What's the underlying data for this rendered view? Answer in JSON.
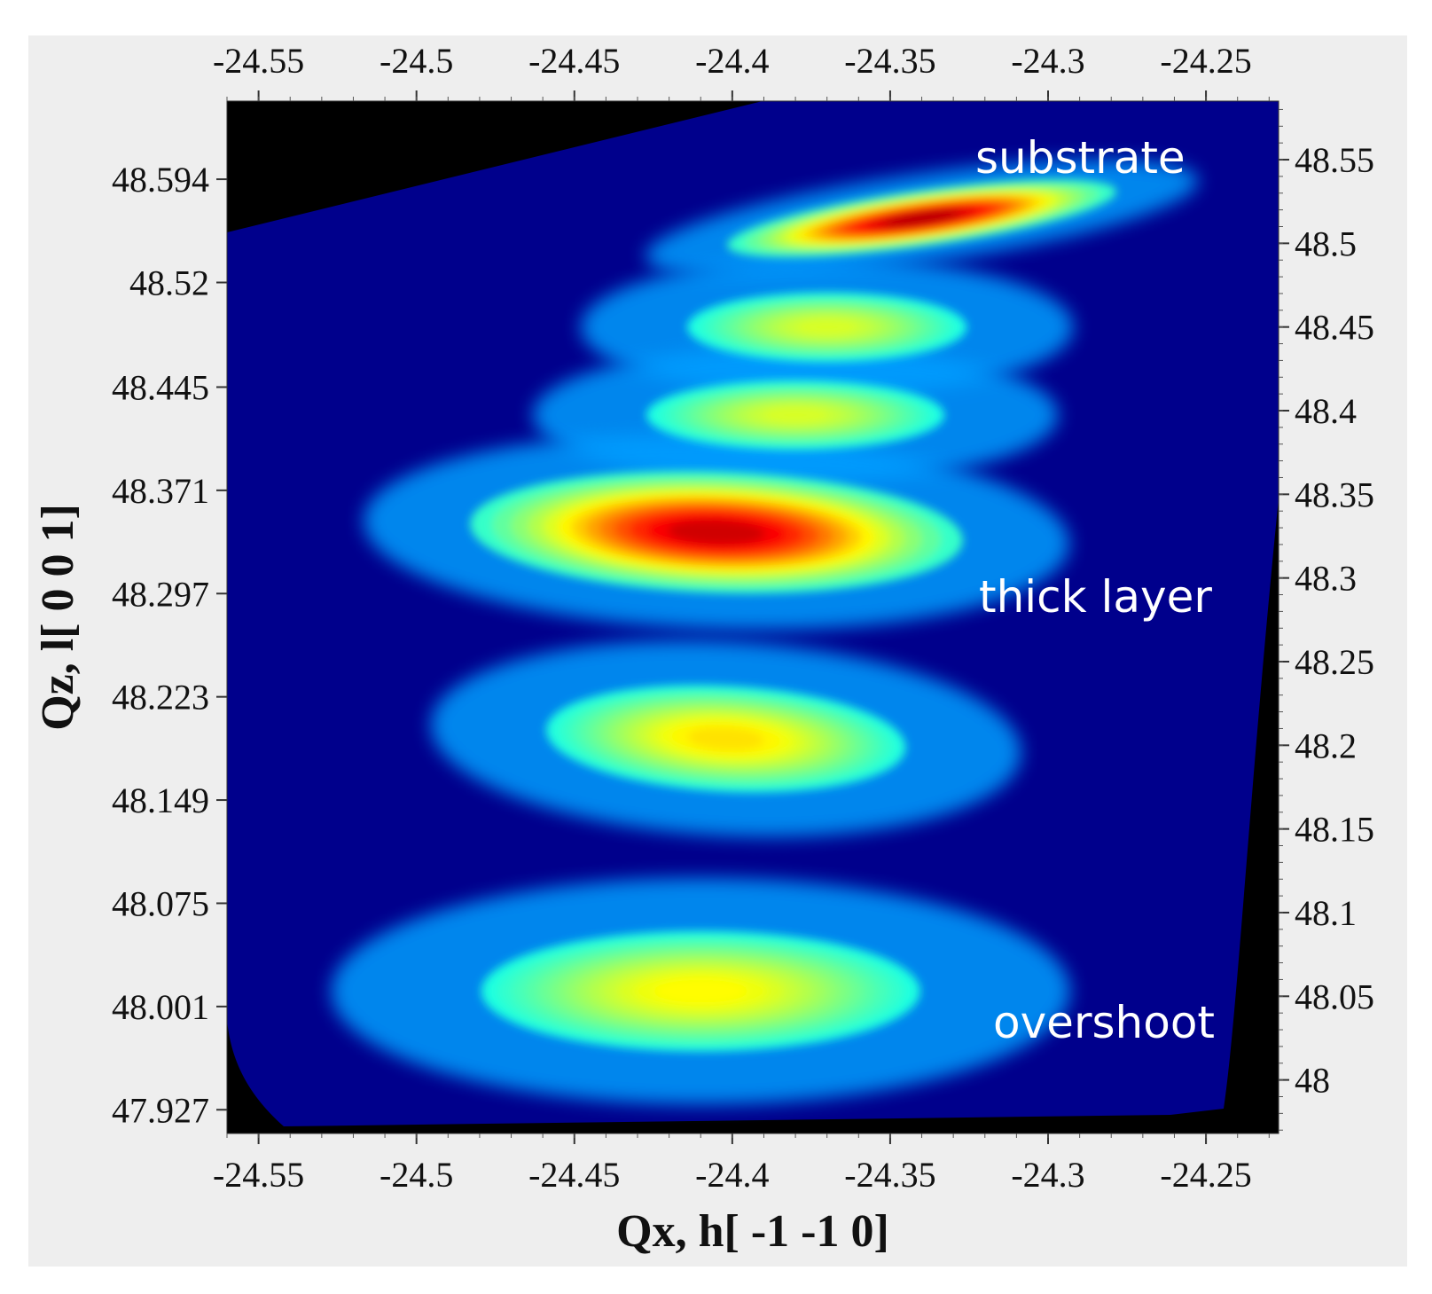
{
  "chart_data": {
    "type": "heatmap",
    "title": "",
    "xlabel": "Qx, h[ -1 -1 0]",
    "ylabel": "Qz, l[ 0 0 1]",
    "x_ticks": [
      "-24.55",
      "-24.5",
      "-24.45",
      "-24.4",
      "-24.35",
      "-24.3",
      "-24.25"
    ],
    "x_tick_values": [
      -24.55,
      -24.5,
      -24.45,
      -24.4,
      -24.35,
      -24.3,
      -24.25
    ],
    "xlim": [
      -24.56,
      -24.227
    ],
    "y_left_ticks": [
      "48.594",
      "48.52",
      "48.445",
      "48.371",
      "48.297",
      "48.223",
      "48.149",
      "48.075",
      "48.001",
      "47.927"
    ],
    "y_left_tick_values": [
      48.594,
      48.52,
      48.445,
      48.371,
      48.297,
      48.223,
      48.149,
      48.075,
      48.001,
      47.927
    ],
    "ylim_left": [
      47.91,
      48.65
    ],
    "y_right_ticks": [
      "48.55",
      "48.5",
      "48.45",
      "48.4",
      "48.35",
      "48.3",
      "48.25",
      "48.2",
      "48.15",
      "48.1",
      "48.05",
      "48"
    ],
    "y_right_tick_values": [
      48.55,
      48.5,
      48.45,
      48.4,
      48.35,
      48.3,
      48.25,
      48.2,
      48.15,
      48.1,
      48.05,
      48.0
    ],
    "ylim_right": [
      47.968,
      48.585
    ],
    "colormap": "jet",
    "background_color": "#000000",
    "peaks": [
      {
        "label": "substrate",
        "qx": -24.34,
        "qz": 48.566,
        "intensity": 0.96,
        "sigma_qx": 0.034,
        "sigma_qz": 0.011
      },
      {
        "label": "",
        "qx": -24.37,
        "qz": 48.488,
        "intensity": 0.42,
        "sigma_qx": 0.03,
        "sigma_qz": 0.017
      },
      {
        "label": "",
        "qx": -24.38,
        "qz": 48.425,
        "intensity": 0.42,
        "sigma_qx": 0.032,
        "sigma_qz": 0.017
      },
      {
        "label": "thick layer",
        "qx": -24.405,
        "qz": 48.341,
        "intensity": 0.92,
        "sigma_qx": 0.043,
        "sigma_qz": 0.024
      },
      {
        "label": "",
        "qx": -24.402,
        "qz": 48.193,
        "intensity": 0.52,
        "sigma_qx": 0.036,
        "sigma_qz": 0.024
      },
      {
        "label": "overshoot",
        "qx": -24.41,
        "qz": 48.012,
        "intensity": 0.48,
        "sigma_qx": 0.045,
        "sigma_qz": 0.028
      }
    ],
    "annotations": [
      "substrate",
      "thick layer",
      "overshoot"
    ]
  },
  "colors": {
    "panel_background": "#eeeeee",
    "map_background": "#000000",
    "annotation_text": "#ffffff"
  }
}
